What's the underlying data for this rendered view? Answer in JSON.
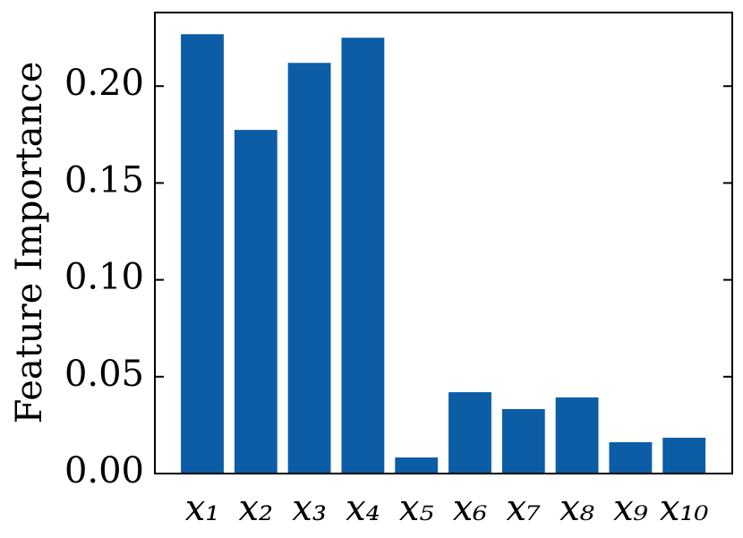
{
  "chart_data": {
    "type": "bar",
    "ylabel": "Feature Importance",
    "categories": [
      "x₁",
      "x₂",
      "x₃",
      "x₄",
      "x₅",
      "x₆",
      "x₇",
      "x₈",
      "x₉",
      "x₁₀"
    ],
    "values": [
      0.2268,
      0.1774,
      0.212,
      0.225,
      0.0083,
      0.042,
      0.0333,
      0.0393,
      0.0162,
      0.0185
    ],
    "color": "#0c5da5",
    "ylim": [
      0,
      0.238
    ],
    "yticks": [
      {
        "value": 0,
        "label": "0.00"
      },
      {
        "value": 0.05,
        "label": "0.05"
      },
      {
        "value": 0.1,
        "label": "0.10"
      },
      {
        "value": 0.15,
        "label": "0.15"
      },
      {
        "value": 0.2,
        "label": "0.20"
      }
    ],
    "grid": false
  }
}
